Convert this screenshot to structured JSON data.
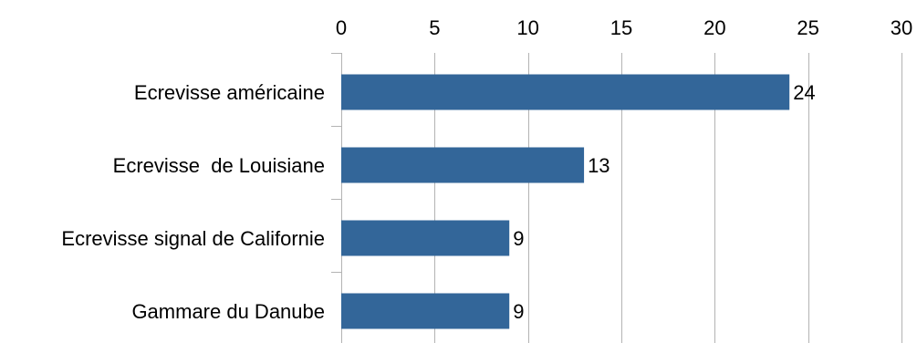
{
  "chart_data": {
    "type": "bar",
    "orientation": "horizontal",
    "title": "",
    "xlabel": "",
    "ylabel": "",
    "categories": [
      "Ecrevisse américaine",
      "Ecrevisse  de Louisiane",
      "Ecrevisse signal de Californie",
      "Gammare du Danube"
    ],
    "values": [
      24,
      13,
      9,
      9
    ],
    "data_labels": [
      "24",
      "13",
      "9",
      "9"
    ],
    "xlim": [
      0,
      30
    ],
    "x_ticks": [
      0,
      5,
      10,
      15,
      20,
      25,
      30
    ],
    "x_tick_labels": [
      "0",
      "5",
      "10",
      "15",
      "20",
      "25",
      "30"
    ],
    "x_axis_position": "top",
    "grid": true,
    "legend": "none",
    "bar_color": "#336699",
    "grid_color": "#b3b3b3"
  }
}
